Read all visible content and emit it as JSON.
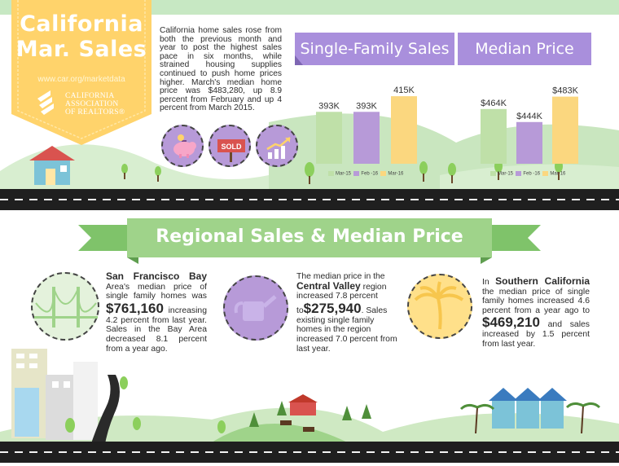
{
  "badge": {
    "title_line1": "California",
    "title_line2": "Mar. Sales",
    "url": "www.car.org/marketdata",
    "logo_line1": "CALIFORNIA",
    "logo_line2": "ASSOCIATION",
    "logo_line3": "OF REALTORS®"
  },
  "intro": {
    "text": "California home sales rose from both the previous month and year to post the highest sales pace in six months, while strained housing supplies continued to push home prices higher. March's median home price was $483,280, up 8.9 percent from February and up 4 percent from March 2015."
  },
  "icons": [
    "piggy-bank-icon",
    "sold-sign-icon",
    "rising-chart-icon"
  ],
  "sold_label": "SOLD",
  "colors": {
    "mar15": "#bfe0a8",
    "feb16": "#b79ad8",
    "mar16": "#fbd77f",
    "ribbon": "#a98fdc",
    "green_banner": "#9fd38a",
    "badge": "#ffd36b"
  },
  "charts": {
    "sales": {
      "title": "Single-Family Sales",
      "values": [
        "393K",
        "393K",
        "415K"
      ],
      "legend": [
        "Mar-15",
        "Feb -16",
        "Mar-16"
      ]
    },
    "price": {
      "title": "Median Price",
      "values": [
        "$464K",
        "$444K",
        "$483K"
      ],
      "legend": [
        "Mar-15",
        "Feb -16",
        "Mar-16"
      ]
    }
  },
  "chart_data": [
    {
      "type": "bar",
      "title": "Single-Family Sales",
      "categories": [
        "Mar-15",
        "Feb -16",
        "Mar-16"
      ],
      "values": [
        393,
        393,
        415
      ],
      "labels": [
        "393K",
        "393K",
        "415K"
      ]
    },
    {
      "type": "bar",
      "title": "Median Price",
      "categories": [
        "Mar-15",
        "Feb -16",
        "Mar-16"
      ],
      "values": [
        464,
        444,
        483
      ],
      "labels": [
        "$464K",
        "$444K",
        "$483K"
      ]
    }
  ],
  "regional": {
    "title": "Regional Sales & Median Price",
    "bay": {
      "heading": "San Francisco Bay",
      "text1": "Area's median price of single family homes was",
      "price": "$761,160",
      "text2": "increasing 4.2 percent from last year. Sales in the Bay Area decreased 8.1 percent from a year ago."
    },
    "central": {
      "text1": "The median price in the",
      "region": "Central Valley",
      "text2": "region increased 7.8 percent to",
      "price": "$275,940",
      "text3": ". Sales existing single family homes in the region increased 7.0 percent from last year."
    },
    "south": {
      "text1": "In",
      "region": "Southern California",
      "text2": "the median price of single family homes increased 4.6 percent from a year ago to",
      "price": "$469,210",
      "text3": "and sales increased by 1.5 percent from last year."
    }
  }
}
